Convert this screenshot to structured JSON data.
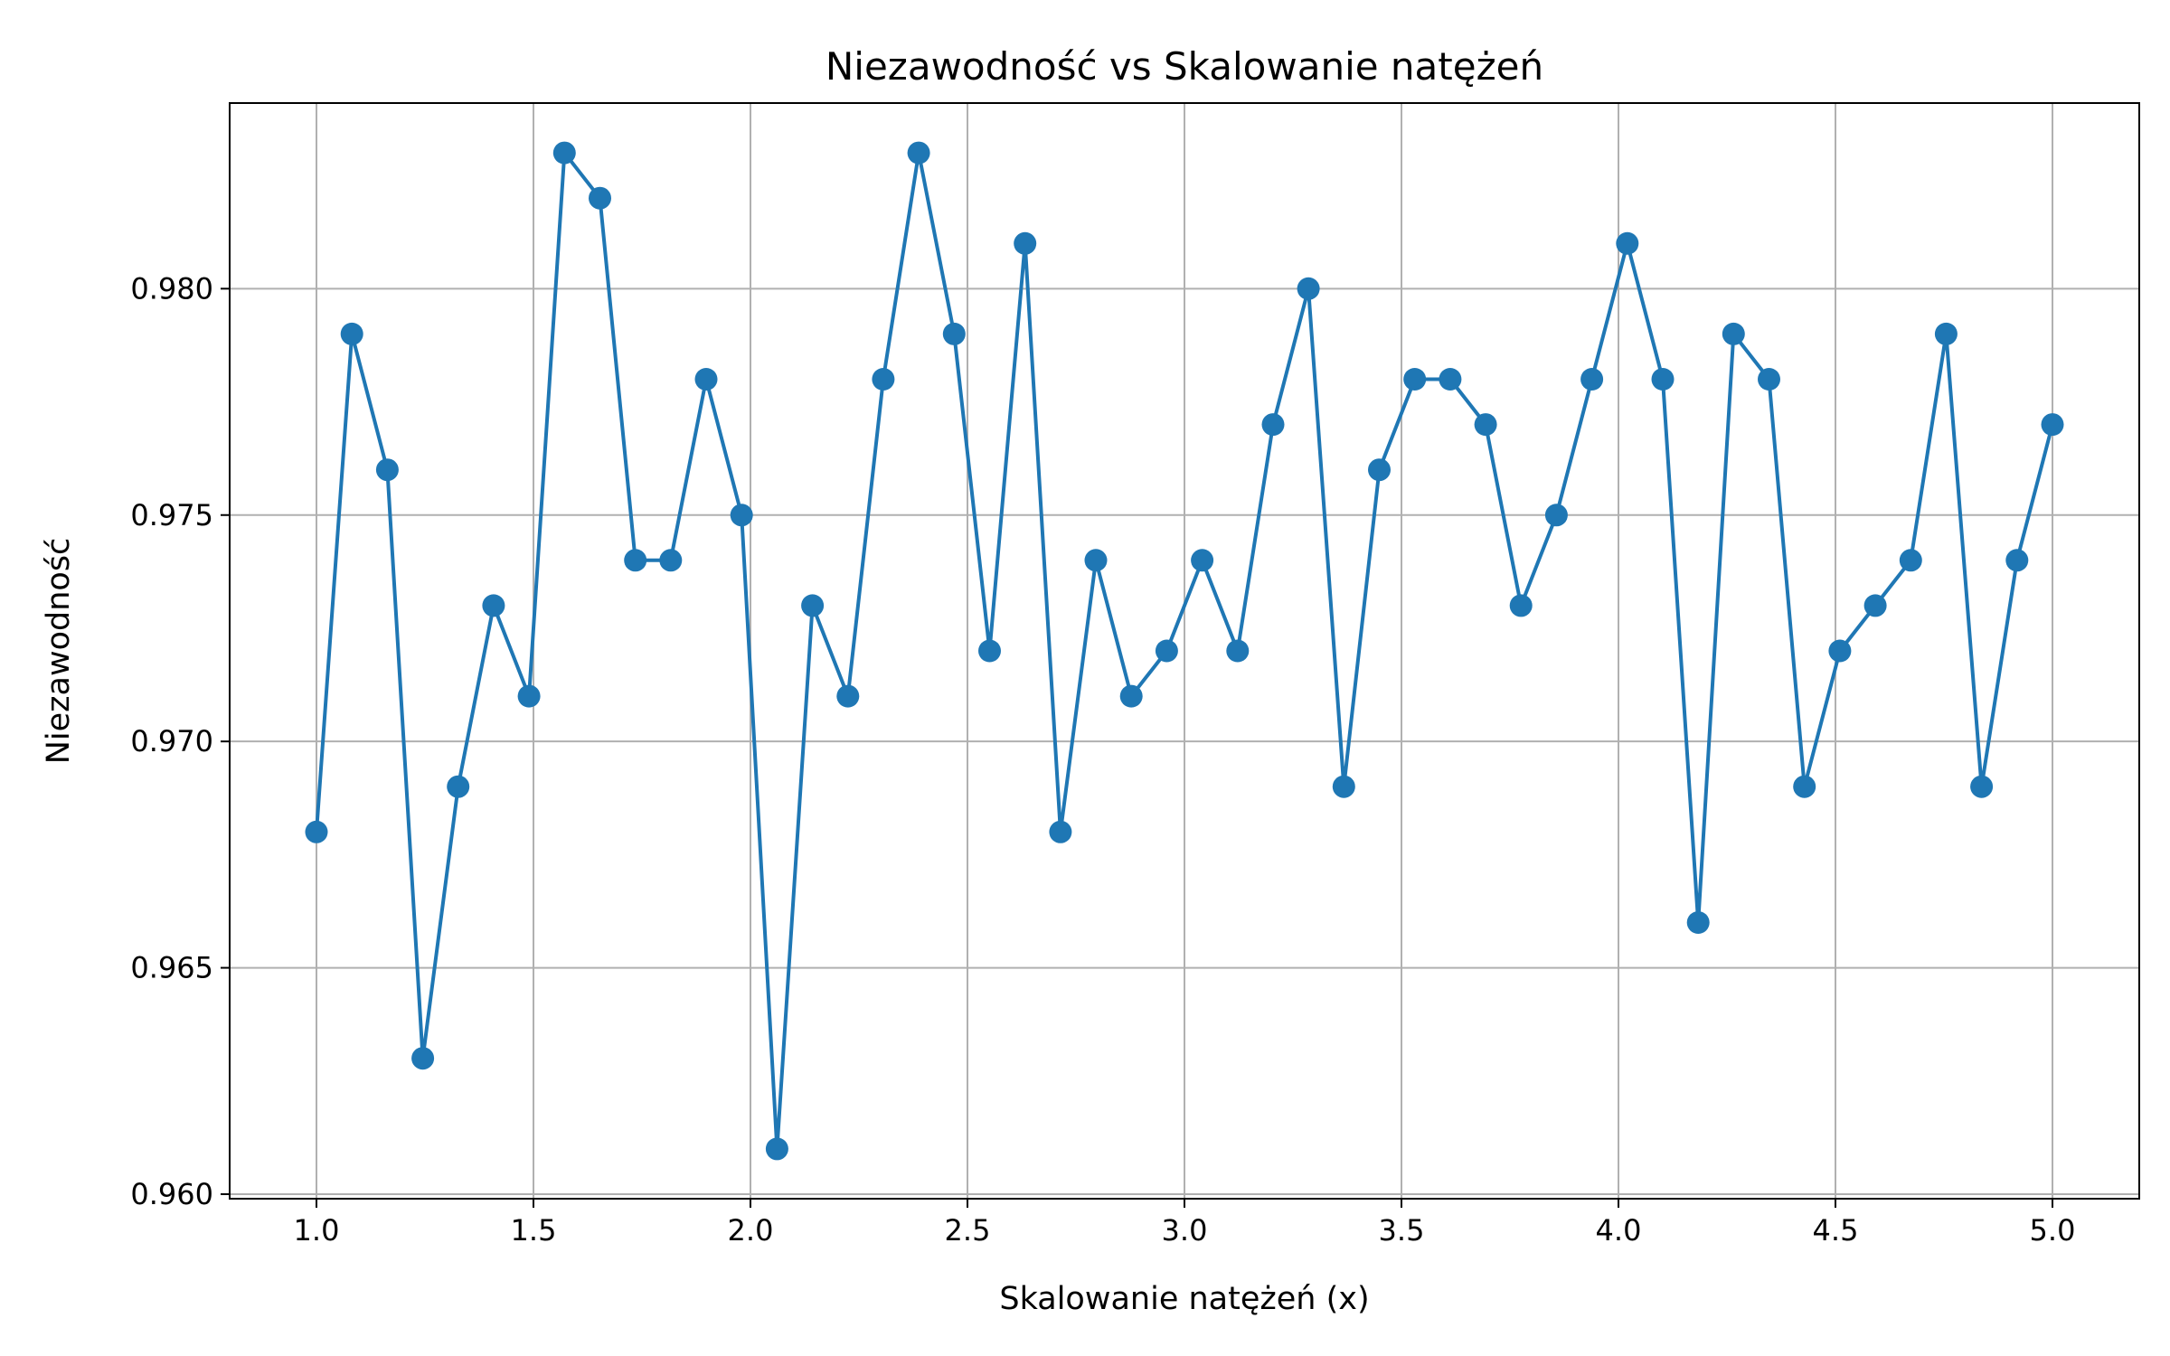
{
  "chart_data": {
    "type": "line",
    "title": "Niezawodność vs Skalowanie natężeń",
    "xlabel": "Skalowanie natężeń (x)",
    "ylabel": "Niezawodność",
    "xlim": [
      0.8,
      5.2
    ],
    "ylim": [
      0.9599,
      0.9841
    ],
    "xticks": [
      "1.0",
      "1.5",
      "2.0",
      "2.5",
      "3.0",
      "3.5",
      "4.0",
      "4.5",
      "5.0"
    ],
    "yticks": [
      "0.960",
      "0.965",
      "0.970",
      "0.975",
      "0.980"
    ],
    "grid": true,
    "line_color": "#1f77b4",
    "series": [
      {
        "x": [
          1.0,
          1.0816,
          1.1633,
          1.2449,
          1.3265,
          1.4082,
          1.4898,
          1.5714,
          1.6531,
          1.7347,
          1.8163,
          1.898,
          1.9796,
          2.0612,
          2.1429,
          2.2245,
          2.3061,
          2.3878,
          2.4694,
          2.551,
          2.6327,
          2.7143,
          2.7959,
          2.8776,
          2.9592,
          3.0408,
          3.1224,
          3.2041,
          3.2857,
          3.3673,
          3.449,
          3.5306,
          3.6122,
          3.6939,
          3.7755,
          3.8571,
          3.9388,
          4.0204,
          4.102,
          4.1837,
          4.2653,
          4.3469,
          4.4286,
          4.5102,
          4.5918,
          4.6735,
          4.7551,
          4.8367,
          4.9184,
          5.0
        ],
        "values": [
          0.968,
          0.979,
          0.976,
          0.963,
          0.969,
          0.973,
          0.971,
          0.983,
          0.982,
          0.974,
          0.974,
          0.978,
          0.975,
          0.961,
          0.973,
          0.971,
          0.978,
          0.983,
          0.979,
          0.972,
          0.981,
          0.968,
          0.974,
          0.971,
          0.972,
          0.974,
          0.972,
          0.977,
          0.98,
          0.969,
          0.976,
          0.978,
          0.978,
          0.977,
          0.973,
          0.975,
          0.978,
          0.981,
          0.978,
          0.966,
          0.979,
          0.978,
          0.969,
          0.972,
          0.973,
          0.974,
          0.979,
          0.969,
          0.974,
          0.977
        ]
      }
    ]
  }
}
